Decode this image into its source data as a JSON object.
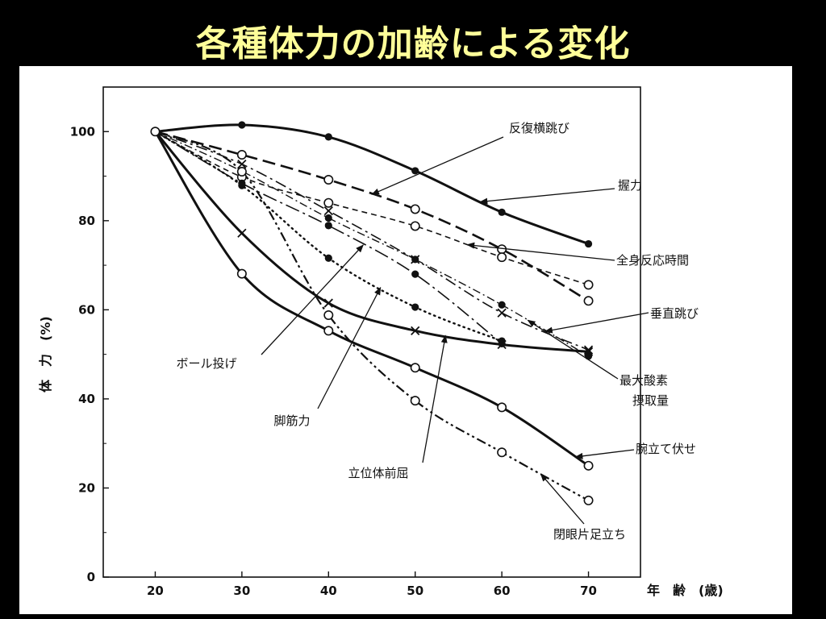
{
  "slide": {
    "title": "各種体力の加齢による変化"
  },
  "colors": {
    "background": "#000000",
    "title": "#ffff99",
    "panel": "#ffffff",
    "ink": "#111111"
  },
  "chart_data": {
    "type": "line",
    "xlabel": "年　齢　(歳)",
    "ylabel": "体　力　(%)",
    "xlim": [
      14,
      76
    ],
    "ylim": [
      0,
      110
    ],
    "xticks": [
      20,
      30,
      40,
      50,
      60,
      70
    ],
    "yticks": [
      0,
      20,
      40,
      60,
      80,
      100
    ],
    "grid": false,
    "legend": "inline labels with leader arrows",
    "series": [
      {
        "name": "握力",
        "style": "solid-thick",
        "marker": "filled",
        "x": [
          20,
          30,
          40,
          50,
          60,
          70
        ],
        "y": [
          100,
          101.5,
          98.8,
          91.2,
          81.9,
          74.8
        ]
      },
      {
        "name": "反復横跳び",
        "style": "long-dash",
        "marker": "open",
        "x": [
          20,
          30,
          40,
          50,
          60,
          70
        ],
        "y": [
          100,
          94.8,
          89.2,
          82.6,
          73.6,
          62
        ]
      },
      {
        "name": "全身反応時間",
        "style": "short-dash",
        "marker": "open",
        "x": [
          20,
          30,
          40,
          50,
          60,
          70
        ],
        "y": [
          100,
          89.8,
          84,
          78.8,
          71.8,
          65.6
        ]
      },
      {
        "name": "垂直跳び",
        "style": "dash-dot",
        "marker": "x",
        "x": [
          20,
          30,
          40,
          50,
          60,
          70
        ],
        "y": [
          100,
          92.7,
          82.2,
          71.3,
          59.3,
          51
        ]
      },
      {
        "name": "最大酸素摂取量",
        "style": "dash-dot-thin",
        "marker": "filled",
        "x": [
          20,
          30,
          40,
          50,
          60,
          70
        ],
        "y": [
          100,
          91.1,
          80.6,
          71.3,
          61.1,
          49.6
        ]
      },
      {
        "name": "脚筋力",
        "style": "dotted",
        "marker": "filled",
        "x": [
          20,
          30,
          40,
          50,
          60
        ],
        "y": [
          100,
          87.9,
          71.6,
          60.6,
          53
        ]
      },
      {
        "name": "ボール投げ",
        "style": "long-dash-dot",
        "marker": "filled",
        "x": [
          20,
          30,
          40,
          50,
          60
        ],
        "y": [
          100,
          88.4,
          78.9,
          68,
          52.4
        ]
      },
      {
        "name": "立位体前屈",
        "style": "solid-thick",
        "marker": "x",
        "x": [
          20,
          30,
          40,
          50,
          60,
          70
        ],
        "y": [
          100,
          77.2,
          61.5,
          55.3,
          52.2,
          50.6
        ]
      },
      {
        "name": "腕立て伏せ",
        "style": "solid-thick",
        "marker": "open",
        "x": [
          20,
          30,
          40,
          50,
          60,
          70
        ],
        "y": [
          100,
          68.1,
          55.3,
          47,
          38.1,
          25
        ]
      },
      {
        "name": "閉眼片足立ち",
        "style": "dash-dot-dot",
        "marker": "open",
        "x": [
          20,
          30,
          40,
          50,
          60,
          70
        ],
        "y": [
          100,
          91,
          58.8,
          39.6,
          28,
          17.2
        ]
      }
    ],
    "annotations": [
      {
        "text": "反復横跳び",
        "series": "反復横跳び"
      },
      {
        "text": "握力",
        "series": "握力"
      },
      {
        "text": "全身反応時間",
        "series": "全身反応時間"
      },
      {
        "text": "垂直跳び",
        "series": "垂直跳び"
      },
      {
        "text": "最大酸素",
        "series": "最大酸素摂取量"
      },
      {
        "text": "摂取量",
        "series": "最大酸素摂取量"
      },
      {
        "text": "ボール投げ",
        "series": "ボール投げ"
      },
      {
        "text": "脚筋力",
        "series": "脚筋力"
      },
      {
        "text": "立位体前屈",
        "series": "立位体前屈"
      },
      {
        "text": "腕立て伏せ",
        "series": "腕立て伏せ"
      },
      {
        "text": "閉眼片足立ち",
        "series": "閉眼片足立ち"
      }
    ]
  }
}
